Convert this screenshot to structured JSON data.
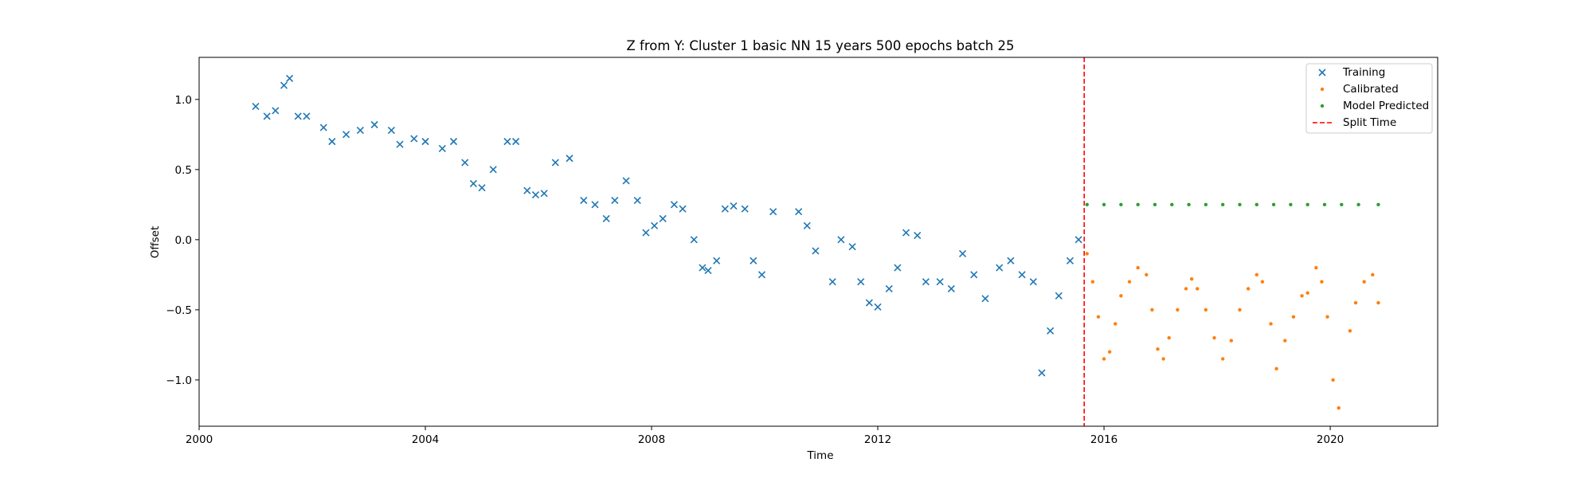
{
  "chart_data": {
    "type": "scatter",
    "title": "Z from Y: Cluster 1 basic NN 15 years 500 epochs batch 25",
    "xlabel": "Time",
    "ylabel": "Offset",
    "xlim": [
      2000.0,
      2021.9
    ],
    "ylim": [
      -1.33,
      1.3
    ],
    "x_ticks": [
      2000,
      2004,
      2008,
      2012,
      2016,
      2020
    ],
    "y_ticks": [
      1.0,
      0.5,
      0.0,
      -0.5,
      -1.0
    ],
    "y_tick_labels": [
      "1.0",
      "0.5",
      "0.0",
      "−0.5",
      "−1.0"
    ],
    "grid": false,
    "legend_position": "top-right",
    "split_time": 2015.65,
    "series": [
      {
        "name": "Training",
        "marker": "x",
        "color": "#1f77b4",
        "x": [
          2001.0,
          2001.2,
          2001.35,
          2001.5,
          2001.6,
          2001.75,
          2001.9,
          2002.2,
          2002.35,
          2002.6,
          2002.85,
          2003.1,
          2003.4,
          2003.55,
          2003.8,
          2004.0,
          2004.3,
          2004.5,
          2004.7,
          2004.85,
          2005.0,
          2005.2,
          2005.45,
          2005.6,
          2005.8,
          2005.95,
          2006.1,
          2006.3,
          2006.55,
          2006.8,
          2007.0,
          2007.2,
          2007.35,
          2007.55,
          2007.75,
          2007.9,
          2008.05,
          2008.2,
          2008.4,
          2008.55,
          2008.75,
          2008.9,
          2009.0,
          2009.15,
          2009.3,
          2009.45,
          2009.65,
          2009.8,
          2009.95,
          2010.15,
          2010.6,
          2010.75,
          2010.9,
          2011.2,
          2011.35,
          2011.55,
          2011.7,
          2011.85,
          2012.0,
          2012.2,
          2012.35,
          2012.5,
          2012.7,
          2012.85,
          2013.1,
          2013.3,
          2013.5,
          2013.7,
          2013.9,
          2014.15,
          2014.35,
          2014.55,
          2014.75,
          2014.9,
          2015.05,
          2015.2,
          2015.4,
          2015.55
        ],
        "y": [
          0.95,
          0.88,
          0.92,
          1.1,
          1.15,
          0.88,
          0.88,
          0.8,
          0.7,
          0.75,
          0.78,
          0.82,
          0.78,
          0.68,
          0.72,
          0.7,
          0.65,
          0.7,
          0.55,
          0.4,
          0.37,
          0.5,
          0.7,
          0.7,
          0.35,
          0.32,
          0.33,
          0.55,
          0.58,
          0.28,
          0.25,
          0.15,
          0.28,
          0.42,
          0.28,
          0.05,
          0.1,
          0.15,
          0.25,
          0.22,
          0.0,
          -0.2,
          -0.22,
          -0.15,
          0.22,
          0.24,
          0.22,
          -0.15,
          -0.25,
          0.2,
          0.2,
          0.1,
          -0.08,
          -0.3,
          0.0,
          -0.05,
          -0.3,
          -0.45,
          -0.48,
          -0.35,
          -0.2,
          0.05,
          0.03,
          -0.3,
          -0.3,
          -0.35,
          -0.1,
          -0.25,
          -0.42,
          -0.2,
          -0.15,
          -0.25,
          -0.3,
          -0.95,
          -0.65,
          -0.4,
          -0.15,
          0.0
        ]
      },
      {
        "name": "Calibrated",
        "marker": "dot",
        "color": "#ff7f0e",
        "x": [
          2015.7,
          2015.8,
          2015.9,
          2016.0,
          2016.1,
          2016.2,
          2016.3,
          2016.45,
          2016.6,
          2016.75,
          2016.85,
          2016.95,
          2017.05,
          2017.15,
          2017.3,
          2017.45,
          2017.55,
          2017.65,
          2017.8,
          2017.95,
          2018.1,
          2018.25,
          2018.4,
          2018.55,
          2018.7,
          2018.8,
          2018.95,
          2019.05,
          2019.2,
          2019.35,
          2019.5,
          2019.6,
          2019.75,
          2019.85,
          2019.95,
          2020.05,
          2020.15,
          2020.35,
          2020.45,
          2020.6,
          2020.75,
          2020.85
        ],
        "y": [
          -0.1,
          -0.3,
          -0.55,
          -0.85,
          -0.8,
          -0.6,
          -0.4,
          -0.3,
          -0.2,
          -0.25,
          -0.5,
          -0.78,
          -0.85,
          -0.7,
          -0.5,
          -0.35,
          -0.28,
          -0.35,
          -0.5,
          -0.7,
          -0.85,
          -0.72,
          -0.5,
          -0.35,
          -0.25,
          -0.3,
          -0.6,
          -0.92,
          -0.72,
          -0.55,
          -0.4,
          -0.38,
          -0.2,
          -0.3,
          -0.55,
          -1.0,
          -1.2,
          -0.65,
          -0.45,
          -0.3,
          -0.25,
          -0.45
        ]
      },
      {
        "name": "Model Predicted",
        "marker": "dot",
        "color": "#2ca02c",
        "x": [
          2015.7,
          2016.0,
          2016.3,
          2016.6,
          2016.9,
          2017.2,
          2017.5,
          2017.8,
          2018.1,
          2018.4,
          2018.7,
          2019.0,
          2019.3,
          2019.6,
          2019.9,
          2020.2,
          2020.5,
          2020.85
        ],
        "y": [
          0.25,
          0.25,
          0.25,
          0.25,
          0.25,
          0.25,
          0.25,
          0.25,
          0.25,
          0.25,
          0.25,
          0.25,
          0.25,
          0.25,
          0.25,
          0.25,
          0.25,
          0.25
        ]
      }
    ],
    "split_line": {
      "name": "Split Time",
      "color": "#ff0000",
      "style": "dashed"
    }
  }
}
